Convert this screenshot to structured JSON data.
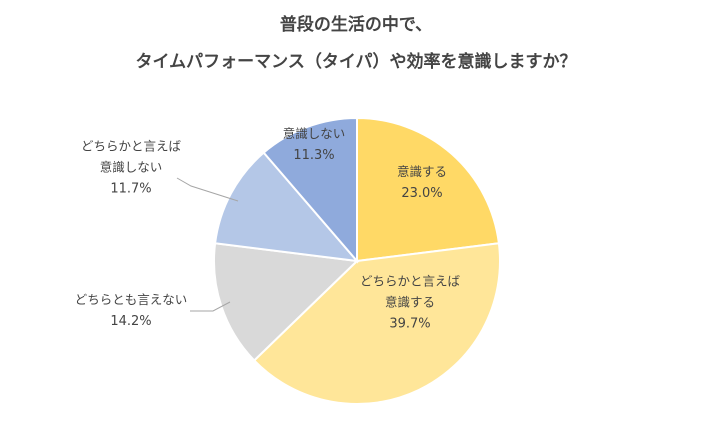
{
  "chart_data": {
    "type": "pie",
    "title_lines": [
      "普段の生活の中で、",
      "タイムパフォーマンス（タイパ）や効率を意識しますか？"
    ],
    "slices": [
      {
        "label_lines": [
          "意識する"
        ],
        "value": 23.0,
        "display": "23.0%",
        "color": "#FFD966"
      },
      {
        "label_lines": [
          "どちらかと言えば",
          "意識する"
        ],
        "value": 39.7,
        "display": "39.7%",
        "color": "#FFE699"
      },
      {
        "label_lines": [
          "どちらとも言えない"
        ],
        "value": 14.2,
        "display": "14.2%",
        "color": "#D9D9D9"
      },
      {
        "label_lines": [
          "どちらかと言えば",
          "意識しない"
        ],
        "value": 11.7,
        "display": "11.7%",
        "color": "#B4C7E7"
      },
      {
        "label_lines": [
          "意識しない"
        ],
        "value": 11.3,
        "display": "11.3%",
        "color": "#8FAADC"
      }
    ],
    "start": "12 o'clock",
    "direction": "clockwise",
    "legend": "none"
  }
}
